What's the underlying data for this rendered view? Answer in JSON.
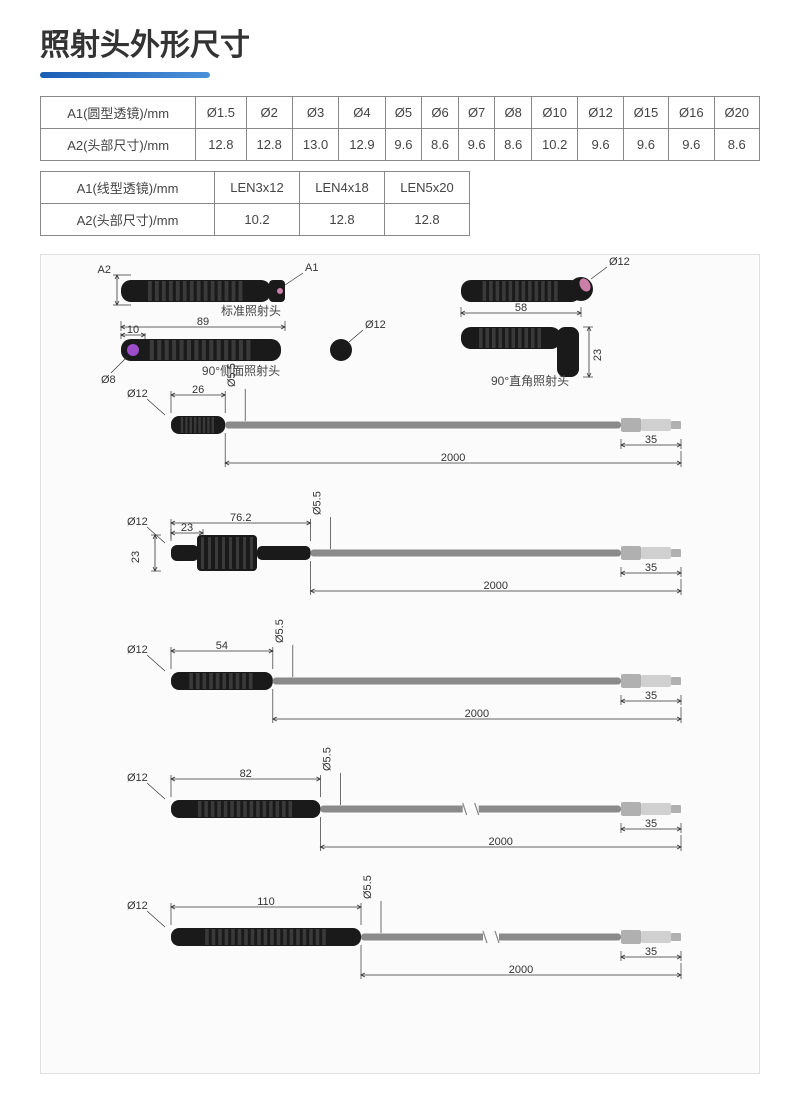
{
  "title": "照射头外形尺寸",
  "table1": {
    "row1_header": "A1(圆型透镜)/mm",
    "row1_cells": [
      "Ø1.5",
      "Ø2",
      "Ø3",
      "Ø4",
      "Ø5",
      "Ø6",
      "Ø7",
      "Ø8",
      "Ø10",
      "Ø12",
      "Ø15",
      "Ø16",
      "Ø20"
    ],
    "row2_header": "A2(头部尺寸)/mm",
    "row2_cells": [
      "12.8",
      "12.8",
      "13.0",
      "12.9",
      "9.6",
      "8.6",
      "9.6",
      "8.6",
      "10.2",
      "9.6",
      "9.6",
      "9.6",
      "8.6"
    ]
  },
  "table2": {
    "row1_header": "A1(线型透镜)/mm",
    "row1_cells": [
      "LEN3x12",
      "LEN4x18",
      "LEN5x20"
    ],
    "row2_header": "A2(头部尺寸)/mm",
    "row2_cells": [
      "10.2",
      "12.8",
      "12.8"
    ]
  },
  "top_diagram": {
    "a2_label": "A2",
    "a1_label": "A1",
    "std_head_label": "标准照射头",
    "std_head_length": "89",
    "side_head_label": "90°侧面照射头",
    "side_head_dia_small": "Ø8",
    "side_head_offset": "10",
    "side_head_dot_dia": "Ø12",
    "right_head_top_dia": "Ø12",
    "right_head_length": "58",
    "right_head_height": "23",
    "right_head_label": "90°直角照射头"
  },
  "cable_rows": [
    {
      "dia": "Ø12",
      "head_len": "26",
      "cable_dia": "Ø5.5",
      "cable_len": "2000",
      "conn_len": "35",
      "has_sleeve": false
    },
    {
      "dia": "Ø12",
      "head_len": "76.2",
      "head_sub": "23",
      "sleeve_h": "23",
      "cable_dia": "Ø5.5",
      "cable_len": "2000",
      "conn_len": "35",
      "has_sleeve": true
    },
    {
      "dia": "Ø12",
      "head_len": "54",
      "cable_dia": "Ø5.5",
      "cable_len": "2000",
      "conn_len": "35",
      "has_sleeve": false
    },
    {
      "dia": "Ø12",
      "head_len": "82",
      "cable_dia": "Ø5.5",
      "cable_len": "2000",
      "conn_len": "35",
      "has_sleeve": false
    },
    {
      "dia": "Ø12",
      "head_len": "110",
      "cable_dia": "Ø5.5",
      "cable_len": "2000",
      "conn_len": "35",
      "has_sleeve": false
    }
  ],
  "colors": {
    "head_body": "#1a1a1a",
    "head_highlight": "#3a3a3a",
    "cable": "#8a8a8a",
    "connector": "#b0b0b0",
    "connector_light": "#d0d0d0",
    "lens_purple": "#9b4dca",
    "lens_pink": "#c97fa8",
    "dim": "#333333",
    "bg": "#fbfbfc"
  }
}
